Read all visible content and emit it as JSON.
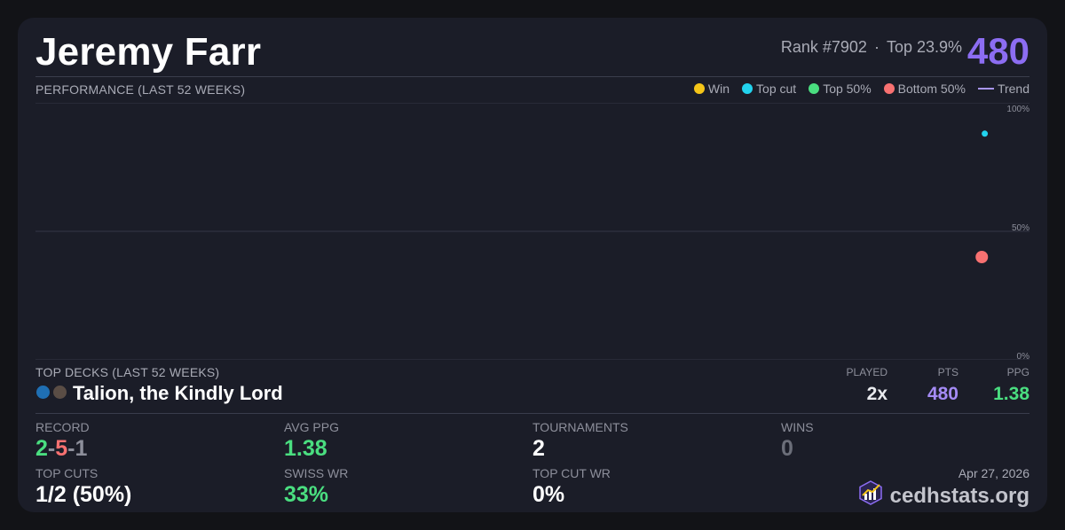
{
  "player": {
    "name": "Jeremy Farr",
    "rank_text": "Rank #7902",
    "separator": "·",
    "top_text": "Top 23.9%",
    "score": "480"
  },
  "performance": {
    "label": "PERFORMANCE (LAST 52 WEEKS)",
    "legend": [
      {
        "label": "Win",
        "color": "#f5c518",
        "kind": "dot"
      },
      {
        "label": "Top cut",
        "color": "#22d3ee",
        "kind": "dot"
      },
      {
        "label": "Top 50%",
        "color": "#4ade80",
        "kind": "dot"
      },
      {
        "label": "Bottom 50%",
        "color": "#f87171",
        "kind": "dot"
      },
      {
        "label": "Trend",
        "color": "#a996f5",
        "kind": "line"
      }
    ]
  },
  "chart_data": {
    "type": "scatter",
    "y_ticks": [
      "100%",
      "50%",
      "0%"
    ],
    "ylim": [
      0,
      100
    ],
    "grid": true,
    "legend_placement": "top-right",
    "series": [
      {
        "name": "Top cut",
        "color": "#22d3ee",
        "points": [
          {
            "x": 0.955,
            "y": 88
          }
        ]
      },
      {
        "name": "Bottom 50%",
        "color": "#f87171",
        "points": [
          {
            "x": 0.952,
            "y": 40
          }
        ]
      }
    ]
  },
  "top_decks": {
    "label": "TOP DECKS (LAST 52 WEEKS)",
    "columns": [
      "PLAYED",
      "PTS",
      "PPG"
    ],
    "rows": [
      {
        "name": "Talion, the Kindly Lord",
        "colors": [
          "#1f6fb3",
          "#5a4d45"
        ],
        "played": "2x",
        "pts": "480",
        "ppg": "1.38"
      }
    ]
  },
  "stats": {
    "record": {
      "label": "RECORD",
      "w": "2",
      "l": "5",
      "d": "1",
      "sep": "-"
    },
    "avg_ppg": {
      "label": "AVG PPG",
      "value": "1.38"
    },
    "tournaments": {
      "label": "TOURNAMENTS",
      "value": "2"
    },
    "wins": {
      "label": "WINS",
      "value": "0"
    },
    "top_cuts": {
      "label": "TOP CUTS",
      "value": "1/2 (50%)"
    },
    "swiss_wr": {
      "label": "SWISS WR",
      "value": "33%"
    },
    "top_cut_wr": {
      "label": "TOP CUT WR",
      "value": "0%"
    }
  },
  "footer": {
    "date": "Apr 27, 2026",
    "brand": "cedhstats.org",
    "brand_icon": "chart-logo-icon"
  },
  "colors": {
    "accent": "#8c6df2",
    "green": "#4ade80",
    "red": "#f87171",
    "muted": "#6b6e79"
  }
}
